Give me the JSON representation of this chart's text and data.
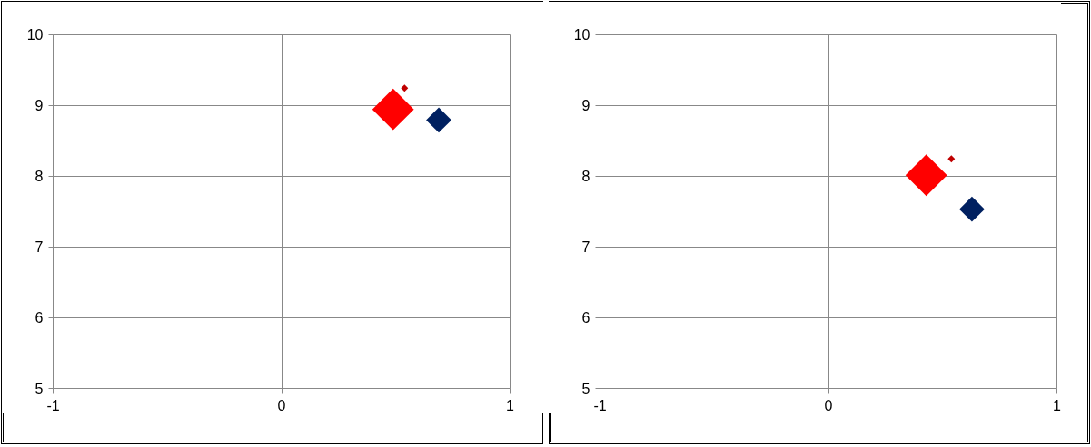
{
  "chart_data": [
    {
      "type": "bubble",
      "x": [
        0.49,
        0.54,
        0.69
      ],
      "values": [
        8.94,
        9.24,
        8.79
      ],
      "sizes": [
        1,
        0.03,
        0.37
      ],
      "colors": [
        "#ff0000",
        "#c00000",
        "#002060"
      ],
      "marker": "diamond",
      "xlim": [
        -1,
        1
      ],
      "xticks": [
        -1,
        0,
        1
      ],
      "ylim": [
        5,
        10
      ],
      "yticks": [
        5,
        6,
        7,
        8,
        9,
        10
      ],
      "grid": true,
      "legend": false
    },
    {
      "type": "bubble",
      "x": [
        0.43,
        0.54,
        0.63
      ],
      "values": [
        8.01,
        8.24,
        7.53
      ],
      "sizes": [
        1,
        0.03,
        0.37
      ],
      "colors": [
        "#ff0000",
        "#c00000",
        "#002060"
      ],
      "marker": "diamond",
      "xlim": [
        -1,
        1
      ],
      "xticks": [
        -1,
        0,
        1
      ],
      "ylim": [
        5,
        10
      ],
      "yticks": [
        5,
        6,
        7,
        8,
        9,
        10
      ],
      "grid": true,
      "legend": false
    }
  ]
}
